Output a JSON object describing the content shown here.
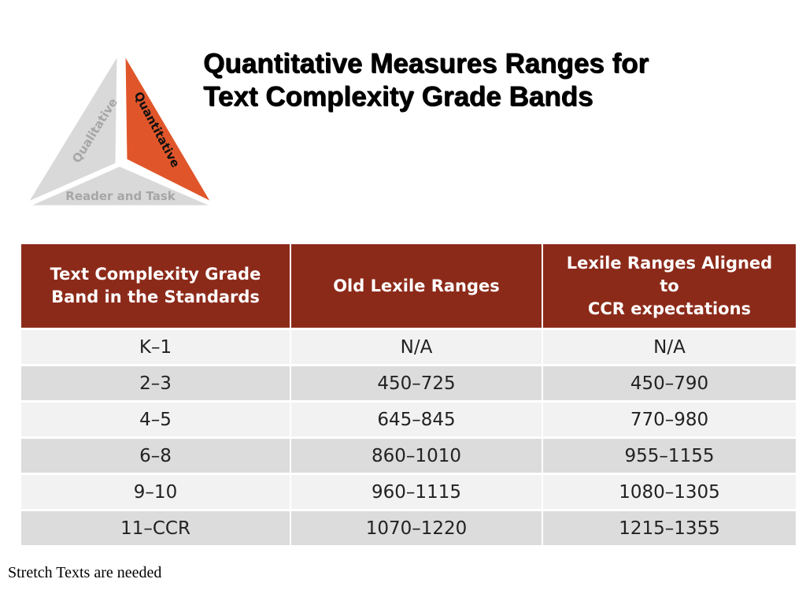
{
  "logo": {
    "left_label": "Qualitative",
    "right_label": "Quantitative",
    "bottom_label": "Reader and Task",
    "colors": {
      "gray": "#d9d9d9",
      "orange": "#e0562a",
      "gray_text": "#a6a6a6"
    }
  },
  "title": {
    "line1": "Quantitative Measures Ranges for",
    "line2": "Text Complexity Grade Bands"
  },
  "table": {
    "header_color": "#8c2a1a",
    "headers": [
      [
        "Text Complexity Grade",
        "Band in the Standards"
      ],
      [
        "Old Lexile Ranges"
      ],
      [
        "Lexile Ranges Aligned",
        "to",
        "CCR expectations"
      ]
    ],
    "rows": [
      [
        "K–1",
        "N/A",
        "N/A"
      ],
      [
        "2–3",
        "450–725",
        "450–790"
      ],
      [
        "4–5",
        "645–845",
        "770–980"
      ],
      [
        "6–8",
        "860–1010",
        "955–1155"
      ],
      [
        "9–10",
        "960–1115",
        "1080–1305"
      ],
      [
        "11–CCR",
        "1070–1220",
        "1215–1355"
      ]
    ]
  },
  "footnote": "Stretch Texts are needed"
}
